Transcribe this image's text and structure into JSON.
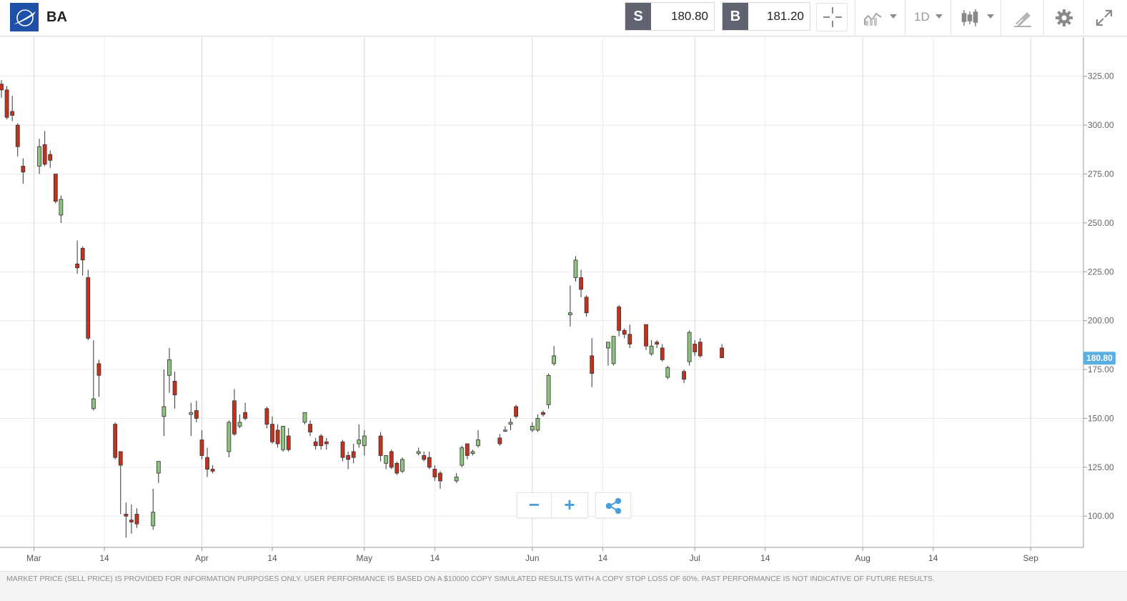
{
  "header": {
    "symbol": "BA",
    "sell_tag": "S",
    "sell_price": "180.80",
    "buy_tag": "B",
    "buy_price": "181.20",
    "timeframe": "1D"
  },
  "icons": {
    "logo": "boeing-logo",
    "crosshair": "crosshair-icon",
    "indicators": "indicators-icon",
    "chart_type": "candlestick-icon",
    "draw": "draw-tool-icon",
    "settings": "gear-icon",
    "fullscreen": "expand-icon",
    "zoom_out": "minus-icon",
    "zoom_in": "plus-icon",
    "share": "share-icon"
  },
  "zoom": {
    "out": "−",
    "in": "+"
  },
  "footer": {
    "disclaimer": "MARKET PRICE (SELL PRICE) IS PROVIDED FOR INFORMATION PURPOSES ONLY. USER PERFORMANCE IS BASED ON A $10000 COPY SIMULATED RESULTS WITH A COPY STOP LOSS OF 60%. PAST PERFORMANCE IS NOT INDICATIVE OF FUTURE RESULTS."
  },
  "chart_data": {
    "type": "candlestick",
    "colors": {
      "up": "#8fc27f",
      "down": "#c4321f",
      "current_price_label_bg": "#5aaee0",
      "grid": "#ececec",
      "month_grid": "#d8d8d8"
    },
    "y_ticks": [
      100,
      125,
      150,
      175,
      200,
      225,
      250,
      275,
      300,
      325
    ],
    "y_tick_labels": [
      "100.00",
      "125.00",
      "150.00",
      "175.00",
      "200.00",
      "225.00",
      "250.00",
      "275.00",
      "300.00",
      "325.00"
    ],
    "ylim": [
      84,
      345
    ],
    "current_price": 180.8,
    "current_price_label": "180.80",
    "x_ticks": [
      {
        "label": "Mar",
        "date": "2020-03-01",
        "month": true
      },
      {
        "label": "14",
        "date": "2020-03-14",
        "month": false
      },
      {
        "label": "Apr",
        "date": "2020-04-01",
        "month": true
      },
      {
        "label": "14",
        "date": "2020-04-14",
        "month": false
      },
      {
        "label": "May",
        "date": "2020-05-01",
        "month": true
      },
      {
        "label": "14",
        "date": "2020-05-14",
        "month": false
      },
      {
        "label": "Jun",
        "date": "2020-06-01",
        "month": true
      },
      {
        "label": "14",
        "date": "2020-06-14",
        "month": false
      },
      {
        "label": "Jul",
        "date": "2020-07-01",
        "month": true
      },
      {
        "label": "14",
        "date": "2020-07-14",
        "month": false
      },
      {
        "label": "Aug",
        "date": "2020-08-01",
        "month": true
      },
      {
        "label": "14",
        "date": "2020-08-14",
        "month": false
      },
      {
        "label": "Sep",
        "date": "2020-09-01",
        "month": true
      }
    ],
    "xlim": [
      "2020-02-24",
      "2020-09-11"
    ],
    "candles": [
      {
        "date": "2020-02-24",
        "open": 321,
        "high": 323,
        "low": 314,
        "close": 318
      },
      {
        "date": "2020-02-25",
        "open": 318,
        "high": 320,
        "low": 303,
        "close": 304
      },
      {
        "date": "2020-02-26",
        "open": 307,
        "high": 315,
        "low": 302,
        "close": 305
      },
      {
        "date": "2020-02-27",
        "open": 300,
        "high": 301,
        "low": 284,
        "close": 289
      },
      {
        "date": "2020-02-28",
        "open": 279,
        "high": 283,
        "low": 270,
        "close": 276
      },
      {
        "date": "2020-03-02",
        "open": 279,
        "high": 293,
        "low": 275,
        "close": 289
      },
      {
        "date": "2020-03-03",
        "open": 290,
        "high": 297,
        "low": 279,
        "close": 280
      },
      {
        "date": "2020-03-04",
        "open": 285,
        "high": 287,
        "low": 278,
        "close": 282
      },
      {
        "date": "2020-03-05",
        "open": 275,
        "high": 275,
        "low": 260,
        "close": 261
      },
      {
        "date": "2020-03-06",
        "open": 254,
        "high": 264,
        "low": 250,
        "close": 262
      },
      {
        "date": "2020-03-09",
        "open": 229,
        "high": 241,
        "low": 224,
        "close": 227
      },
      {
        "date": "2020-03-10",
        "open": 237,
        "high": 238,
        "low": 223,
        "close": 231
      },
      {
        "date": "2020-03-11",
        "open": 222,
        "high": 226,
        "low": 190,
        "close": 191
      },
      {
        "date": "2020-03-12",
        "open": 155,
        "high": 190,
        "low": 154,
        "close": 160
      },
      {
        "date": "2020-03-13",
        "open": 178,
        "high": 180,
        "low": 161,
        "close": 172
      },
      {
        "date": "2020-03-16",
        "open": 147,
        "high": 148,
        "low": 129,
        "close": 130
      },
      {
        "date": "2020-03-17",
        "open": 133,
        "high": 133,
        "low": 101,
        "close": 126
      },
      {
        "date": "2020-03-18",
        "open": 101,
        "high": 107,
        "low": 89,
        "close": 100
      },
      {
        "date": "2020-03-19",
        "open": 98,
        "high": 106,
        "low": 91,
        "close": 97
      },
      {
        "date": "2020-03-20",
        "open": 101,
        "high": 104,
        "low": 94,
        "close": 96
      },
      {
        "date": "2020-03-23",
        "open": 95,
        "high": 114,
        "low": 93,
        "close": 102
      },
      {
        "date": "2020-03-24",
        "open": 122,
        "high": 128,
        "low": 117,
        "close": 128
      },
      {
        "date": "2020-03-25",
        "open": 151,
        "high": 175,
        "low": 141,
        "close": 156
      },
      {
        "date": "2020-03-26",
        "open": 172,
        "high": 186,
        "low": 163,
        "close": 180
      },
      {
        "date": "2020-03-27",
        "open": 169,
        "high": 174,
        "low": 155,
        "close": 162
      },
      {
        "date": "2020-03-30",
        "open": 152,
        "high": 158,
        "low": 141,
        "close": 153
      },
      {
        "date": "2020-03-31",
        "open": 154,
        "high": 159,
        "low": 148,
        "close": 150
      },
      {
        "date": "2020-04-01",
        "open": 139,
        "high": 144,
        "low": 129,
        "close": 131
      },
      {
        "date": "2020-04-02",
        "open": 130,
        "high": 135,
        "low": 120,
        "close": 124
      },
      {
        "date": "2020-04-03",
        "open": 124,
        "high": 126,
        "low": 122,
        "close": 123
      },
      {
        "date": "2020-04-06",
        "open": 133,
        "high": 149,
        "low": 130,
        "close": 148
      },
      {
        "date": "2020-04-07",
        "open": 159,
        "high": 165,
        "low": 141,
        "close": 142
      },
      {
        "date": "2020-04-08",
        "open": 146,
        "high": 152,
        "low": 145,
        "close": 148
      },
      {
        "date": "2020-04-09",
        "open": 153,
        "high": 158,
        "low": 149,
        "close": 150
      },
      {
        "date": "2020-04-13",
        "open": 155,
        "high": 156,
        "low": 145,
        "close": 147
      },
      {
        "date": "2020-04-14",
        "open": 147,
        "high": 151,
        "low": 137,
        "close": 138
      },
      {
        "date": "2020-04-15",
        "open": 144,
        "high": 147,
        "low": 135,
        "close": 137
      },
      {
        "date": "2020-04-16",
        "open": 134,
        "high": 146,
        "low": 133,
        "close": 146
      },
      {
        "date": "2020-04-17",
        "open": 141,
        "high": 145,
        "low": 133,
        "close": 134
      },
      {
        "date": "2020-04-20",
        "open": 148,
        "high": 153,
        "low": 147,
        "close": 153
      },
      {
        "date": "2020-04-21",
        "open": 147,
        "high": 149,
        "low": 141,
        "close": 143
      },
      {
        "date": "2020-04-22",
        "open": 138,
        "high": 140,
        "low": 134,
        "close": 136
      },
      {
        "date": "2020-04-23",
        "open": 141,
        "high": 142,
        "low": 134,
        "close": 136
      },
      {
        "date": "2020-04-24",
        "open": 138,
        "high": 140,
        "low": 134,
        "close": 137
      },
      {
        "date": "2020-04-27",
        "open": 138,
        "high": 139,
        "low": 128,
        "close": 130
      },
      {
        "date": "2020-04-28",
        "open": 131,
        "high": 133,
        "low": 124,
        "close": 129
      },
      {
        "date": "2020-04-29",
        "open": 133,
        "high": 137,
        "low": 127,
        "close": 130
      },
      {
        "date": "2020-04-30",
        "open": 137,
        "high": 147,
        "low": 135,
        "close": 139
      },
      {
        "date": "2020-05-01",
        "open": 136,
        "high": 144,
        "low": 131,
        "close": 141
      },
      {
        "date": "2020-05-04",
        "open": 141,
        "high": 143,
        "low": 128,
        "close": 131
      },
      {
        "date": "2020-05-05",
        "open": 127,
        "high": 131,
        "low": 124,
        "close": 131
      },
      {
        "date": "2020-05-06",
        "open": 133,
        "high": 134,
        "low": 124,
        "close": 125
      },
      {
        "date": "2020-05-07",
        "open": 127,
        "high": 128,
        "low": 121,
        "close": 122
      },
      {
        "date": "2020-05-08",
        "open": 123,
        "high": 130,
        "low": 122,
        "close": 129
      },
      {
        "date": "2020-05-11",
        "open": 132,
        "high": 135,
        "low": 131,
        "close": 133
      },
      {
        "date": "2020-05-12",
        "open": 131,
        "high": 133,
        "low": 128,
        "close": 129
      },
      {
        "date": "2020-05-13",
        "open": 130,
        "high": 133,
        "low": 124,
        "close": 125
      },
      {
        "date": "2020-05-14",
        "open": 124,
        "high": 126,
        "low": 118,
        "close": 120
      },
      {
        "date": "2020-05-15",
        "open": 122,
        "high": 123,
        "low": 114,
        "close": 118
      },
      {
        "date": "2020-05-18",
        "open": 118,
        "high": 122,
        "low": 117,
        "close": 120
      },
      {
        "date": "2020-05-19",
        "open": 126,
        "high": 136,
        "low": 125,
        "close": 135
      },
      {
        "date": "2020-05-20",
        "open": 137,
        "high": 137,
        "low": 129,
        "close": 131
      },
      {
        "date": "2020-05-21",
        "open": 132,
        "high": 134,
        "low": 131,
        "close": 133
      },
      {
        "date": "2020-05-22",
        "open": 136,
        "high": 144,
        "low": 135,
        "close": 139
      },
      {
        "date": "2020-05-26",
        "open": 140,
        "high": 142,
        "low": 136,
        "close": 137
      },
      {
        "date": "2020-05-27",
        "open": 144,
        "high": 146,
        "low": 143,
        "close": 144
      },
      {
        "date": "2020-05-28",
        "open": 147,
        "high": 150,
        "low": 144,
        "close": 148
      },
      {
        "date": "2020-05-29",
        "open": 156,
        "high": 157,
        "low": 150,
        "close": 151
      },
      {
        "date": "2020-06-01",
        "open": 144,
        "high": 148,
        "low": 143,
        "close": 146
      },
      {
        "date": "2020-06-02",
        "open": 144,
        "high": 152,
        "low": 143,
        "close": 150
      },
      {
        "date": "2020-06-03",
        "open": 153,
        "high": 154,
        "low": 151,
        "close": 152
      },
      {
        "date": "2020-06-04",
        "open": 157,
        "high": 173,
        "low": 155,
        "close": 172
      },
      {
        "date": "2020-06-05",
        "open": 178,
        "high": 187,
        "low": 177,
        "close": 182
      },
      {
        "date": "2020-06-08",
        "open": 203,
        "high": 218,
        "low": 197,
        "close": 204
      },
      {
        "date": "2020-06-09",
        "open": 222,
        "high": 233,
        "low": 220,
        "close": 231
      },
      {
        "date": "2020-06-10",
        "open": 222,
        "high": 226,
        "low": 212,
        "close": 216
      },
      {
        "date": "2020-06-11",
        "open": 212,
        "high": 213,
        "low": 202,
        "close": 204
      },
      {
        "date": "2020-06-12",
        "open": 182,
        "high": 191,
        "low": 166,
        "close": 173
      },
      {
        "date": "2020-06-15",
        "open": 186,
        "high": 189,
        "low": 177,
        "close": 189
      },
      {
        "date": "2020-06-16",
        "open": 178,
        "high": 192,
        "low": 177,
        "close": 192
      },
      {
        "date": "2020-06-17",
        "open": 207,
        "high": 208,
        "low": 192,
        "close": 195
      },
      {
        "date": "2020-06-18",
        "open": 195,
        "high": 196,
        "low": 191,
        "close": 193
      },
      {
        "date": "2020-06-19",
        "open": 193,
        "high": 198,
        "low": 186,
        "close": 188
      },
      {
        "date": "2020-06-22",
        "open": 198,
        "high": 198,
        "low": 185,
        "close": 187
      },
      {
        "date": "2020-06-23",
        "open": 183,
        "high": 190,
        "low": 182,
        "close": 187
      },
      {
        "date": "2020-06-24",
        "open": 189,
        "high": 190,
        "low": 186,
        "close": 188
      },
      {
        "date": "2020-06-25",
        "open": 186,
        "high": 188,
        "low": 179,
        "close": 180
      },
      {
        "date": "2020-06-26",
        "open": 171,
        "high": 177,
        "low": 170,
        "close": 176
      },
      {
        "date": "2020-06-29",
        "open": 174,
        "high": 175,
        "low": 168,
        "close": 170
      },
      {
        "date": "2020-06-30",
        "open": 179,
        "high": 195,
        "low": 177,
        "close": 194
      },
      {
        "date": "2020-07-01",
        "open": 188,
        "high": 190,
        "low": 182,
        "close": 184
      },
      {
        "date": "2020-07-02",
        "open": 189,
        "high": 191,
        "low": 181,
        "close": 182
      },
      {
        "date": "2020-07-06",
        "open": 186,
        "high": 188,
        "low": 181,
        "close": 181
      }
    ]
  }
}
